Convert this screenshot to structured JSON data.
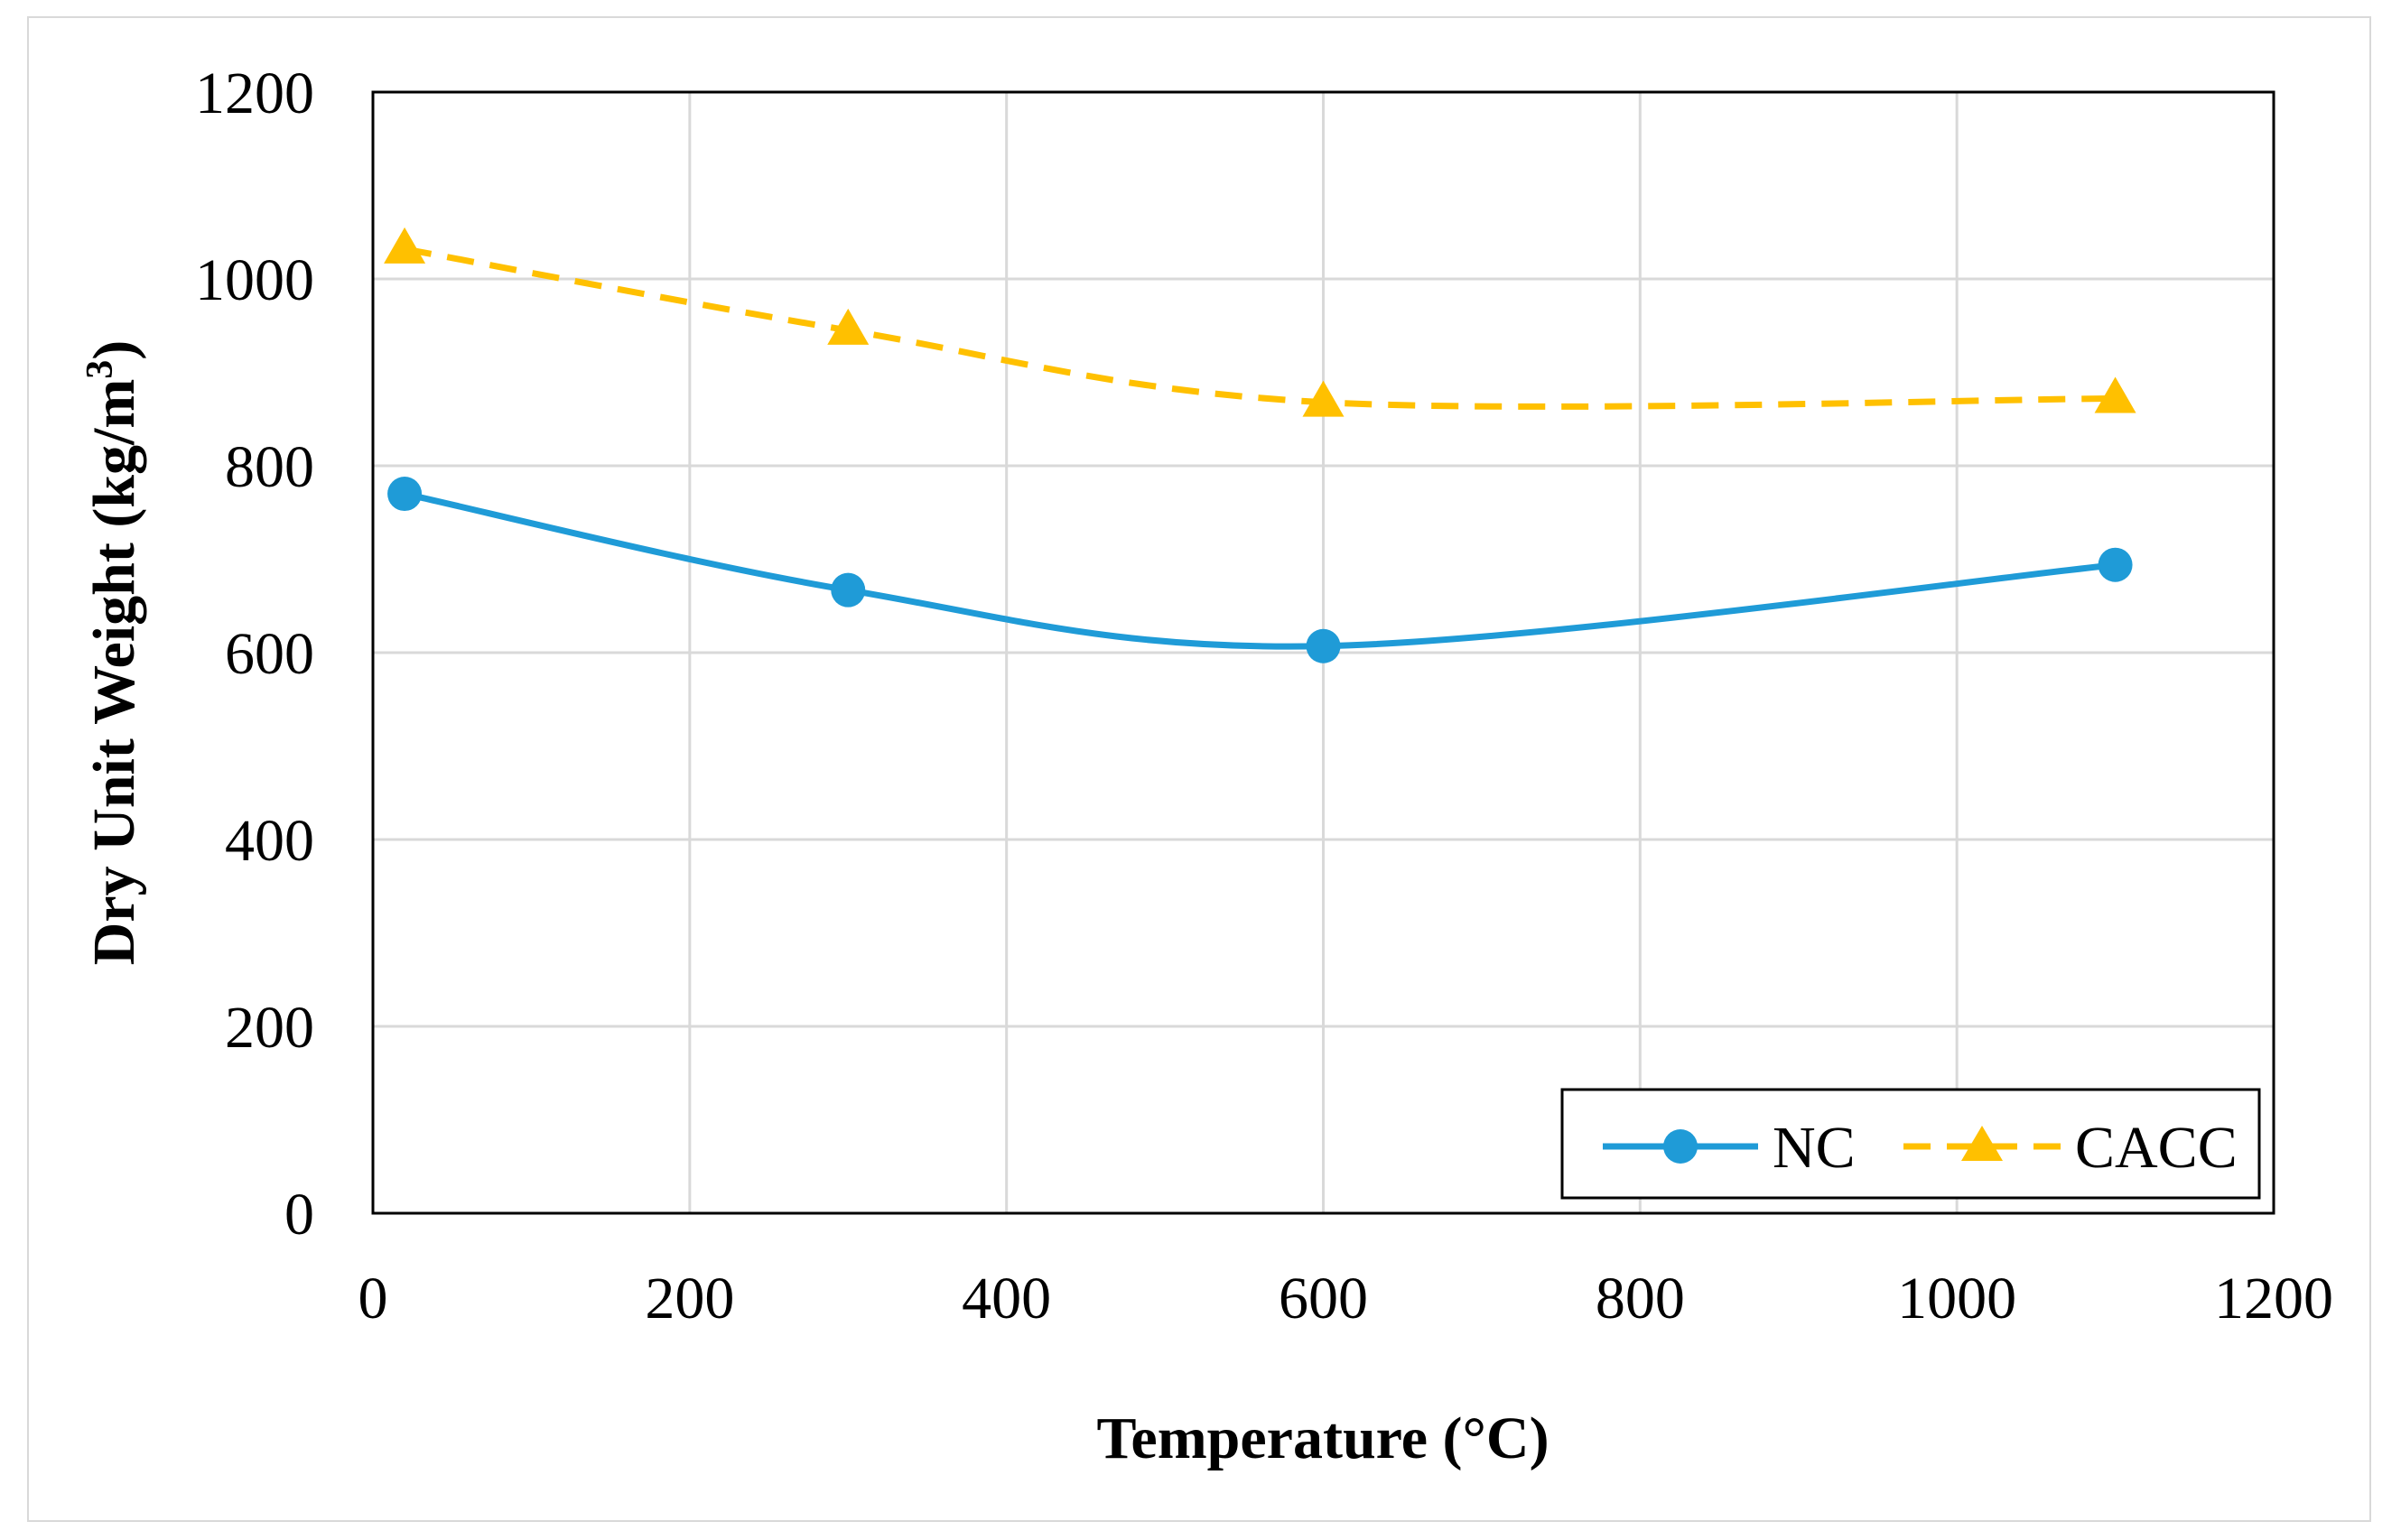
{
  "chart_data": {
    "type": "line",
    "title": "",
    "xlabel": "Temperature (°C)",
    "ylabel": "Dry Unit Weight (kg/m",
    "ylabel_superscript": "3",
    "ylabel_close": ")",
    "xlim": [
      0,
      1200
    ],
    "ylim": [
      0,
      1200
    ],
    "x_ticks": [
      0,
      200,
      400,
      600,
      800,
      1000,
      1200
    ],
    "y_ticks": [
      0,
      200,
      400,
      600,
      800,
      1000,
      1200
    ],
    "x_tick_labels": [
      "0",
      "200",
      "400",
      "600",
      "800",
      "1000",
      "1200"
    ],
    "y_tick_labels": [
      "0",
      "200",
      "400",
      "600",
      "800",
      "1000",
      "1200"
    ],
    "grid": true,
    "legend_position": "bottom-right",
    "series": [
      {
        "name": "NC",
        "x": [
          20,
          300,
          600,
          1100
        ],
        "values": [
          770,
          667,
          607,
          694
        ],
        "color": "#1f9bd7",
        "marker": "circle",
        "line_style": "solid"
      },
      {
        "name": "CACC",
        "x": [
          20,
          300,
          600,
          1100
        ],
        "values": [
          1032,
          945,
          868,
          872
        ],
        "color": "#ffc000",
        "marker": "triangle",
        "line_style": "dashed"
      }
    ]
  }
}
